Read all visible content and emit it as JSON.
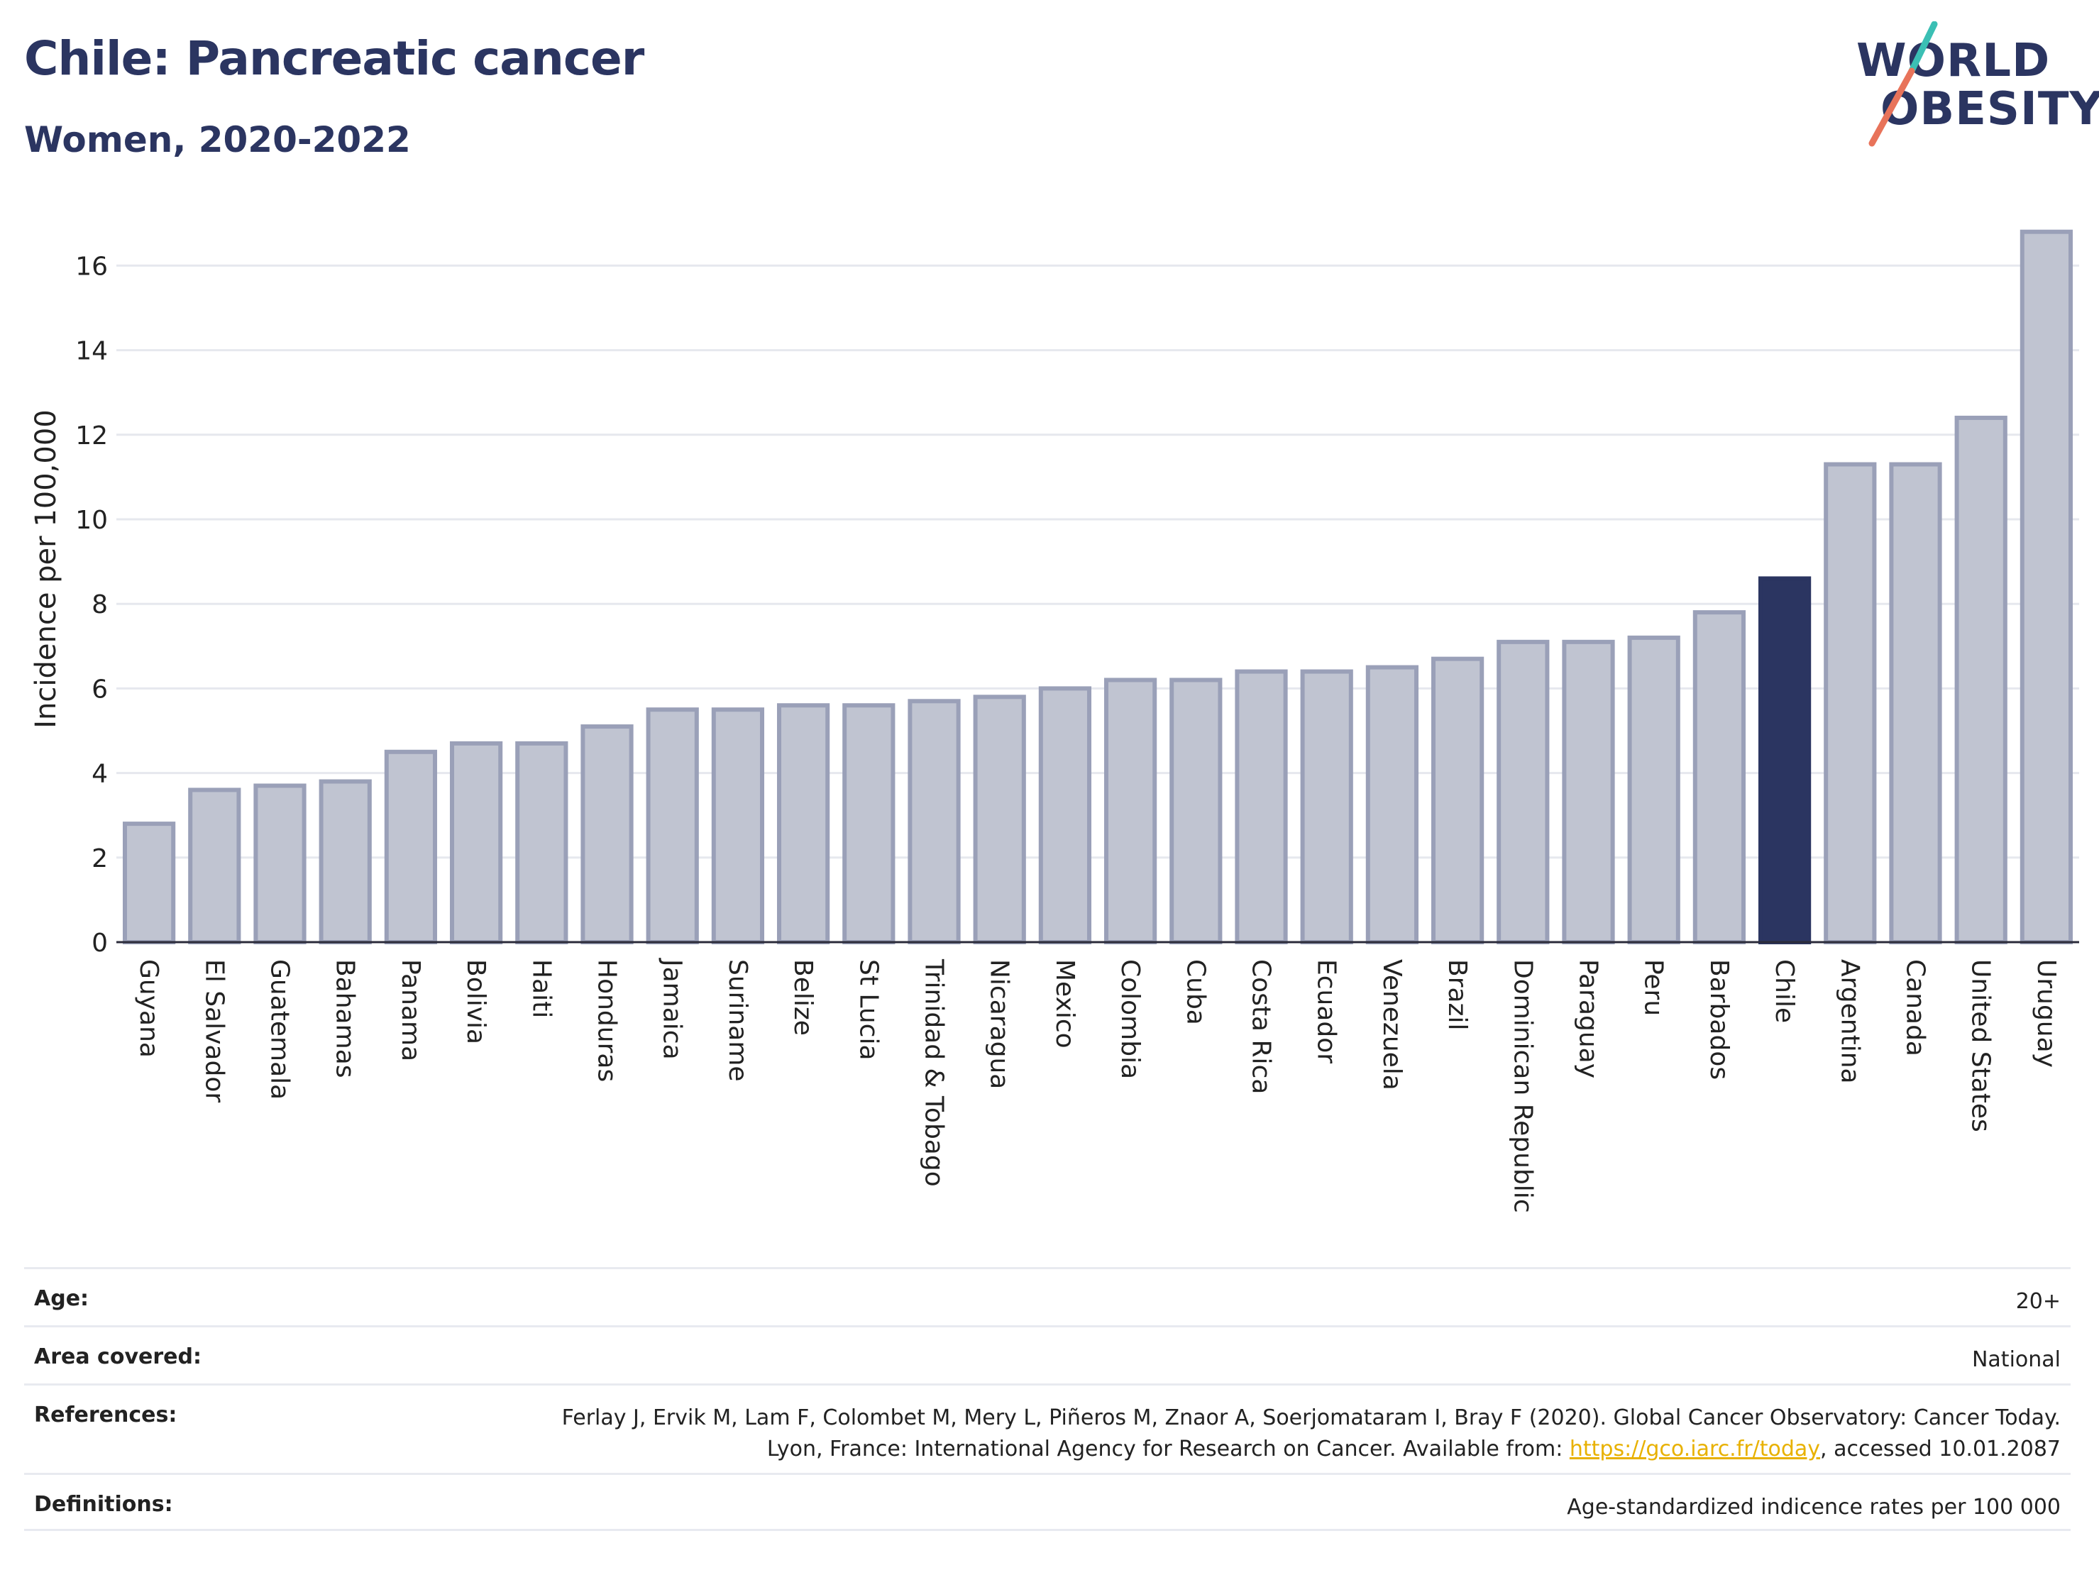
{
  "header": {
    "title": "Chile: Pancreatic cancer",
    "subtitle": "Women, 2020-2022"
  },
  "logo": {
    "line1": "WORLD",
    "line2": "OBESITY",
    "text_color": "#2b3561",
    "accent_teal": "#3bbfb4",
    "accent_red": "#e8735a"
  },
  "colors": {
    "bar": "#c0c4d1",
    "bar_outline": "#9aa0b8",
    "highlight": "#2b3561"
  },
  "chart_data": {
    "type": "bar",
    "ylabel": "Incidence per 100,000",
    "xlabel": "",
    "ylim": [
      0,
      17
    ],
    "yticks": [
      0,
      2,
      4,
      6,
      8,
      10,
      12,
      14,
      16
    ],
    "grid": true,
    "highlight": "Chile",
    "categories": [
      "Guyana",
      "El Salvador",
      "Guatemala",
      "Bahamas",
      "Panama",
      "Bolivia",
      "Haiti",
      "Honduras",
      "Jamaica",
      "Suriname",
      "Belize",
      "St Lucia",
      "Trinidad & Tobago",
      "Nicaragua",
      "Mexico",
      "Colombia",
      "Cuba",
      "Costa Rica",
      "Ecuador",
      "Venezuela",
      "Brazil",
      "Dominican Republic",
      "Paraguay",
      "Peru",
      "Barbados",
      "Chile",
      "Argentina",
      "Canada",
      "United States",
      "Uruguay"
    ],
    "values": [
      2.8,
      3.6,
      3.7,
      3.8,
      4.5,
      4.7,
      4.7,
      5.1,
      5.5,
      5.5,
      5.6,
      5.6,
      5.7,
      5.8,
      6.0,
      6.2,
      6.2,
      6.4,
      6.4,
      6.5,
      6.7,
      7.1,
      7.1,
      7.2,
      7.8,
      8.6,
      11.3,
      11.3,
      12.4,
      16.8
    ]
  },
  "info": {
    "age_label": "Age:",
    "age_value": "20+",
    "area_label": "Area covered:",
    "area_value": "National",
    "references_label": "References:",
    "references_text_1": "Ferlay J, Ervik M, Lam F, Colombet M, Mery L, Piñeros M, Znaor A, Soerjomataram I, Bray F (2020). Global Cancer Observatory: Cancer Today. Lyon, France: International Agency for Research on Cancer. Available from: ",
    "references_link": "https://gco.iarc.fr/today",
    "references_text_2": ", accessed 10.01.2087",
    "definitions_label": "Definitions:",
    "definitions_value": "Age-standardized indicence rates per 100 000"
  }
}
